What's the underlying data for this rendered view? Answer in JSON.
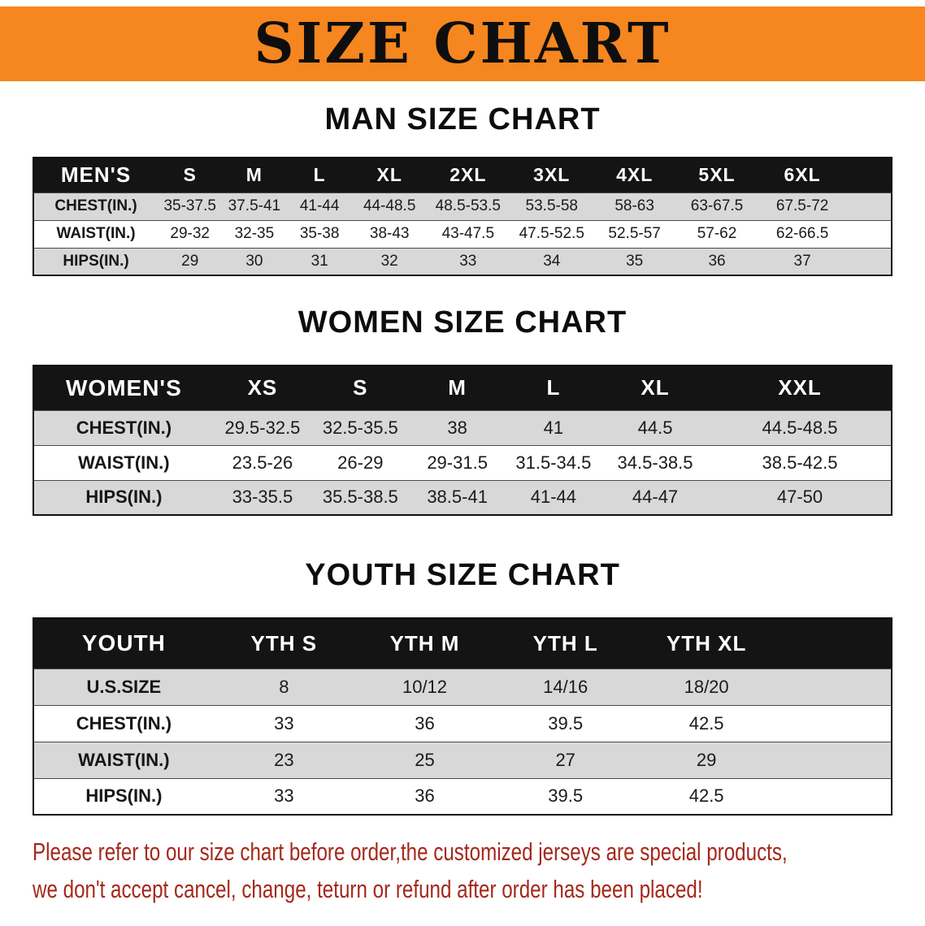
{
  "banner": {
    "title": "SIZE CHART",
    "background": "#f6861f"
  },
  "sections": [
    {
      "heading": "MAN SIZE CHART",
      "table": {
        "header": [
          "MEN'S",
          "S",
          "M",
          "L",
          "XL",
          "2XL",
          "3XL",
          "4XL",
          "5XL",
          "6XL"
        ],
        "rows": [
          {
            "label": "CHEST(IN.)",
            "values": [
              "35-37.5",
              "37.5-41",
              "41-44",
              "44-48.5",
              "48.5-53.5",
              "53.5-58",
              "58-63",
              "63-67.5",
              "67.5-72"
            ]
          },
          {
            "label": "WAIST(IN.)",
            "values": [
              "29-32",
              "32-35",
              "35-38",
              "38-43",
              "43-47.5",
              "47.5-52.5",
              "52.5-57",
              "57-62",
              "62-66.5"
            ]
          },
          {
            "label": "HIPS(IN.)",
            "values": [
              "29",
              "30",
              "31",
              "32",
              "33",
              "34",
              "35",
              "36",
              "37"
            ]
          }
        ]
      }
    },
    {
      "heading": "WOMEN SIZE CHART",
      "table": {
        "header": [
          "WOMEN'S",
          "XS",
          "S",
          "M",
          "L",
          "XL",
          "XXL"
        ],
        "rows": [
          {
            "label": "CHEST(IN.)",
            "values": [
              "29.5-32.5",
              "32.5-35.5",
              "38",
              "41",
              "44.5",
              "44.5-48.5"
            ]
          },
          {
            "label": "WAIST(IN.)",
            "values": [
              "23.5-26",
              "26-29",
              "29-31.5",
              "31.5-34.5",
              "34.5-38.5",
              "38.5-42.5"
            ]
          },
          {
            "label": "HIPS(IN.)",
            "values": [
              "33-35.5",
              "35.5-38.5",
              "38.5-41",
              "41-44",
              "44-47",
              "47-50"
            ]
          }
        ]
      }
    },
    {
      "heading": "YOUTH SIZE CHART",
      "table": {
        "header": [
          "YOUTH",
          "YTH S",
          "YTH M",
          "YTH L",
          "YTH XL"
        ],
        "rows": [
          {
            "label": "U.S.SIZE",
            "values": [
              "8",
              "10/12",
              "14/16",
              "18/20"
            ]
          },
          {
            "label": "CHEST(IN.)",
            "values": [
              "33",
              "36",
              "39.5",
              "42.5"
            ]
          },
          {
            "label": "WAIST(IN.)",
            "values": [
              "23",
              "25",
              "27",
              "29"
            ]
          },
          {
            "label": "HIPS(IN.)",
            "values": [
              "33",
              "36",
              "39.5",
              "42.5"
            ]
          }
        ]
      }
    }
  ],
  "footer": {
    "color": "#a5281b",
    "lines": [
      "Please refer to our size chart before order,the customized jerseys are special products,",
      "we don't accept cancel, change, teturn or refund after order has been placed!"
    ]
  }
}
